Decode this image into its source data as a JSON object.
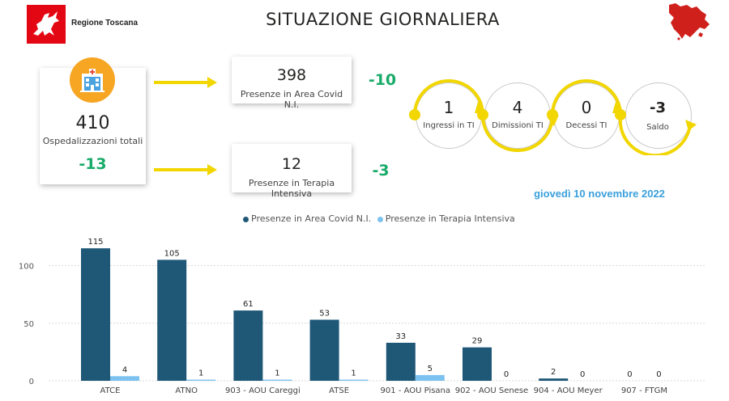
{
  "header": {
    "org_name": "Regione Toscana",
    "title": "SITUAZIONE GIORNALIERA"
  },
  "hospital": {
    "value": "410",
    "label": "Ospedalizzazioni totali",
    "delta": "-13",
    "icon": "hospital-icon"
  },
  "covid_area": {
    "value": "398",
    "label": "Presenze in Area Covid N.I.",
    "delta": "-10"
  },
  "intensive": {
    "value": "12",
    "label": "Presenze in Terapia Intensiva",
    "delta": "-3"
  },
  "flow": [
    {
      "value": "1",
      "label": "Ingressi in TI"
    },
    {
      "value": "4",
      "label": "Dimissioni TI"
    },
    {
      "value": "0",
      "label": "Decessi TI"
    },
    {
      "value": "-3",
      "label": "Saldo"
    }
  ],
  "date": "giovedì 10 novembre 2022",
  "colors": {
    "accent_yellow": "#f2d600",
    "series_dark": "#1f5777",
    "series_light": "#7cc2f0",
    "delta_green": "#1aab6a",
    "date_blue": "#3aa0dc",
    "brand_red": "#e30613"
  },
  "chart_data": {
    "type": "bar",
    "categories": [
      "ATCE",
      "ATNO",
      "903 - AOU Careggi",
      "ATSE",
      "901 - AOU Pisana",
      "902 - AOU Senese",
      "904 - AOU Meyer",
      "907 - FTGM"
    ],
    "series": [
      {
        "name": "Presenze in Area Covid N.I.",
        "values": [
          115,
          105,
          61,
          53,
          33,
          29,
          2,
          0
        ]
      },
      {
        "name": "Presenze in Terapia Intensiva",
        "values": [
          4,
          1,
          1,
          1,
          5,
          0,
          0,
          0
        ]
      }
    ],
    "yticks": [
      "0",
      "50",
      "100"
    ],
    "ylim": [
      0,
      125
    ],
    "grid": true,
    "legend_position": "top"
  }
}
